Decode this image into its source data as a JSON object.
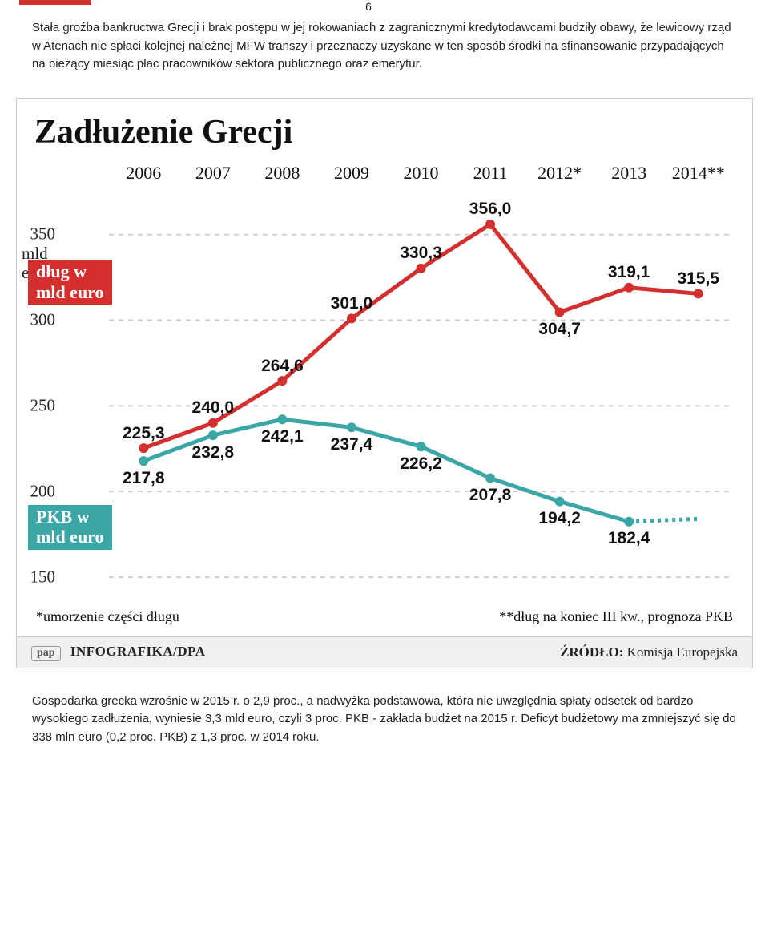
{
  "page_number": "6",
  "intro_text": "Stała groźba bankructwa Grecji i brak postępu w jej rokowaniach z zagranicznymi kredytodawcami budziły obawy, że lewicowy rząd w Atenach nie spłaci kolejnej należnej MFW transzy i przeznaczy uzyskane w ten sposób środki na sfinansowanie przypadających na bieżący miesiąc płac pracowników sektora publicznego oraz emerytur.",
  "chart": {
    "title": "Zadłużenie Grecji",
    "years": [
      "2006",
      "2007",
      "2008",
      "2009",
      "2010",
      "2011",
      "2012*",
      "2013",
      "2014**"
    ],
    "y": {
      "min": 150,
      "max": 370,
      "ticks": [
        150,
        200,
        250,
        300,
        350
      ],
      "unit_lines": [
        "mld",
        "euro"
      ]
    },
    "grid_color": "#cfcfcf",
    "background": "#ffffff",
    "series": [
      {
        "id": "debt",
        "label_lines": [
          "dług w",
          "mld euro"
        ],
        "color": "#d32f2f",
        "values": [
          225.3,
          240.0,
          264.6,
          301.0,
          330.3,
          356.0,
          304.7,
          319.1,
          315.5
        ],
        "label_strings": [
          "225,3",
          "240,0",
          "264,6",
          "301,0",
          "330,3",
          "356,0",
          "304,7",
          "319,1",
          "315,5"
        ],
        "label_side": [
          "above",
          "above",
          "above",
          "above",
          "above",
          "above",
          "below",
          "above",
          "above"
        ]
      },
      {
        "id": "gdp",
        "label_lines": [
          "PKB w",
          "mld euro"
        ],
        "color": "#3aa6a6",
        "values": [
          217.8,
          232.8,
          242.1,
          237.4,
          226.2,
          207.8,
          194.2,
          182.4,
          184.0
        ],
        "label_strings": [
          "217,8",
          "232,8",
          "242,1",
          "237,4",
          "226,2",
          "207,8",
          "194,2",
          "182,4",
          ""
        ],
        "label_side": [
          "below",
          "below",
          "below",
          "below",
          "below",
          "below",
          "below",
          "below",
          "below"
        ],
        "dashed_last_segment": true
      }
    ],
    "footnote_left": "*umorzenie części długu",
    "footnote_right": "**dług na koniec III kw., prognoza PKB",
    "footer_left_badge": "pap",
    "footer_left_text": "INFOGRAFIKA/DPA",
    "footer_right_label": "ŹRÓDŁO:",
    "footer_right_value": "Komisja Europejska",
    "line_width": 5,
    "marker_radius": 6
  },
  "outro_text": "Gospodarka grecka wzrośnie w 2015 r. o 2,9 proc., a nadwyżka podstawowa, która nie uwzględnia spłaty odsetek od bardzo wysokiego zadłużenia, wyniesie 3,3 mld euro, czyli 3 proc. PKB - zakłada budżet na 2015 r. Deficyt budżetowy ma zmniejszyć się do 338 mln euro (0,2 proc. PKB) z 1,3 proc. w 2014 roku."
}
